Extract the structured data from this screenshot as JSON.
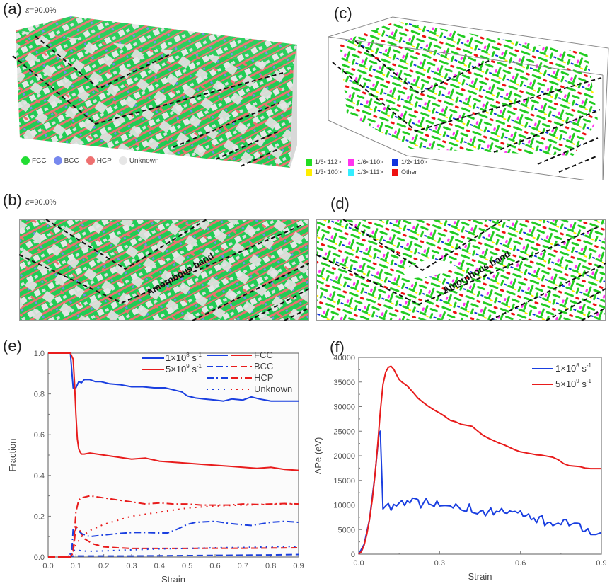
{
  "panels": {
    "a": {
      "label": "(a)",
      "strain_note": "=90.0%",
      "epsilon": "ε"
    },
    "b": {
      "label": "(b)",
      "strain_note": "=90.0%",
      "epsilon": "ε",
      "annotation": "Amorphous band"
    },
    "c": {
      "label": "(c)"
    },
    "d": {
      "label": "(d)",
      "annotation": "Amorphous band"
    },
    "e": {
      "label": "(e)"
    },
    "f": {
      "label": "(f)"
    }
  },
  "structure_legend": [
    {
      "label": "FCC",
      "color": "#22dd33"
    },
    {
      "label": "BCC",
      "color": "#7788ee"
    },
    {
      "label": "HCP",
      "color": "#ee7070"
    },
    {
      "label": "Unknown",
      "color": "#e6e6e6"
    }
  ],
  "dislocation_legend": [
    {
      "label": "1/6<112>",
      "color": "#22dd22"
    },
    {
      "label": "1/6<110>",
      "color": "#ff33ee"
    },
    {
      "label": "1/2<110>",
      "color": "#1133dd"
    },
    {
      "label": "1/3<100>",
      "color": "#ffee00"
    },
    {
      "label": "1/3<111>",
      "color": "#33eeff"
    },
    {
      "label": "Other",
      "color": "#ee1111"
    }
  ],
  "chart_data": [
    {
      "id": "e",
      "type": "line",
      "title": "",
      "xlabel": "Strain",
      "ylabel": "Fraction",
      "xlim": [
        0.0,
        0.9
      ],
      "ylim": [
        0.0,
        1.0
      ],
      "xticks": [
        "0.0",
        "0.1",
        "0.2",
        "0.3",
        "0.4",
        "0.5",
        "0.6",
        "0.7",
        "0.8",
        "0.9"
      ],
      "yticks": [
        "0.0",
        "0.2",
        "0.4",
        "0.6",
        "0.8",
        "1.0"
      ],
      "grid": false,
      "legend_position": "top-right",
      "legend_rates": [
        {
          "label": "1×10",
          "sup": "8",
          "unit": " s",
          "unitsup": "-1",
          "color": "#1a3fe0"
        },
        {
          "label": "5×10",
          "sup": "9",
          "unit": " s",
          "unitsup": "-1",
          "color": "#e81c1c"
        }
      ],
      "legend_styles": [
        {
          "label": "FCC",
          "style": "solid"
        },
        {
          "label": "BCC",
          "style": "dash"
        },
        {
          "label": "HCP",
          "style": "dashdot"
        },
        {
          "label": "Unknown",
          "style": "dot"
        }
      ],
      "series": [
        {
          "name": "1e8 FCC",
          "rate": "1×10^8 s^-1",
          "structure": "FCC",
          "color": "#1a3fe0",
          "style": "solid",
          "x": [
            0,
            0.07,
            0.08,
            0.09,
            0.1,
            0.11,
            0.12,
            0.13,
            0.15,
            0.17,
            0.19,
            0.22,
            0.26,
            0.3,
            0.34,
            0.38,
            0.42,
            0.45,
            0.48,
            0.5,
            0.53,
            0.56,
            0.6,
            0.63,
            0.66,
            0.7,
            0.73,
            0.76,
            0.8,
            0.84,
            0.87,
            0.9
          ],
          "y": [
            1,
            1,
            1,
            0.83,
            0.83,
            0.86,
            0.855,
            0.87,
            0.87,
            0.86,
            0.86,
            0.85,
            0.845,
            0.835,
            0.835,
            0.83,
            0.83,
            0.82,
            0.81,
            0.79,
            0.78,
            0.775,
            0.77,
            0.765,
            0.775,
            0.77,
            0.785,
            0.775,
            0.765,
            0.765,
            0.765,
            0.765
          ]
        },
        {
          "name": "5e9 FCC",
          "rate": "5×10^9 s^-1",
          "structure": "FCC",
          "color": "#e81c1c",
          "style": "solid",
          "x": [
            0,
            0.08,
            0.09,
            0.095,
            0.1,
            0.105,
            0.11,
            0.115,
            0.12,
            0.13,
            0.15,
            0.2,
            0.25,
            0.3,
            0.35,
            0.4,
            0.45,
            0.5,
            0.55,
            0.6,
            0.65,
            0.7,
            0.75,
            0.8,
            0.85,
            0.9
          ],
          "y": [
            1,
            1,
            0.97,
            0.85,
            0.7,
            0.58,
            0.53,
            0.515,
            0.505,
            0.505,
            0.51,
            0.5,
            0.49,
            0.48,
            0.485,
            0.47,
            0.465,
            0.46,
            0.455,
            0.45,
            0.445,
            0.44,
            0.435,
            0.44,
            0.43,
            0.425
          ]
        },
        {
          "name": "1e8 BCC",
          "rate": "1×10^8 s^-1",
          "structure": "BCC",
          "color": "#1a3fe0",
          "style": "dash",
          "x": [
            0,
            0.07,
            0.09,
            0.12,
            0.2,
            0.3,
            0.4,
            0.5,
            0.6,
            0.7,
            0.8,
            0.9
          ],
          "y": [
            0,
            0,
            0.005,
            0.005,
            0.005,
            0.005,
            0.006,
            0.007,
            0.008,
            0.009,
            0.01,
            0.012
          ]
        },
        {
          "name": "5e9 BCC",
          "rate": "5×10^9 s^-1",
          "structure": "BCC",
          "color": "#e81c1c",
          "style": "dash",
          "x": [
            0,
            0.08,
            0.09,
            0.1,
            0.11,
            0.13,
            0.16,
            0.2,
            0.25,
            0.3,
            0.4,
            0.5,
            0.6,
            0.7,
            0.8,
            0.9
          ],
          "y": [
            0,
            0,
            0.02,
            0.15,
            0.14,
            0.09,
            0.065,
            0.05,
            0.045,
            0.042,
            0.042,
            0.042,
            0.043,
            0.043,
            0.044,
            0.045
          ]
        },
        {
          "name": "1e8 HCP",
          "rate": "1×10^8 s^-1",
          "structure": "HCP",
          "color": "#1a3fe0",
          "style": "dashdot",
          "x": [
            0,
            0.07,
            0.085,
            0.09,
            0.1,
            0.12,
            0.15,
            0.2,
            0.25,
            0.3,
            0.35,
            0.4,
            0.43,
            0.47,
            0.5,
            0.53,
            0.6,
            0.65,
            0.7,
            0.73,
            0.8,
            0.85,
            0.9
          ],
          "y": [
            0,
            0,
            0.02,
            0.14,
            0.14,
            0.115,
            0.1,
            0.108,
            0.115,
            0.12,
            0.12,
            0.118,
            0.118,
            0.14,
            0.16,
            0.17,
            0.175,
            0.165,
            0.158,
            0.155,
            0.17,
            0.175,
            0.17
          ]
        },
        {
          "name": "5e9 HCP",
          "rate": "5×10^9 s^-1",
          "structure": "HCP",
          "color": "#e81c1c",
          "style": "dashdot",
          "x": [
            0,
            0.08,
            0.09,
            0.1,
            0.11,
            0.12,
            0.15,
            0.2,
            0.25,
            0.3,
            0.35,
            0.4,
            0.45,
            0.5,
            0.55,
            0.6,
            0.65,
            0.7,
            0.75,
            0.8,
            0.85,
            0.9
          ],
          "y": [
            0,
            0,
            0.03,
            0.22,
            0.28,
            0.29,
            0.3,
            0.29,
            0.28,
            0.27,
            0.26,
            0.265,
            0.26,
            0.26,
            0.255,
            0.255,
            0.255,
            0.26,
            0.258,
            0.26,
            0.262,
            0.26
          ]
        },
        {
          "name": "1e8 Unknown",
          "rate": "1×10^8 s^-1",
          "structure": "Unknown",
          "color": "#1a3fe0",
          "style": "dot",
          "x": [
            0,
            0.07,
            0.09,
            0.1,
            0.12,
            0.15,
            0.2,
            0.3,
            0.4,
            0.5,
            0.6,
            0.7,
            0.8,
            0.9
          ],
          "y": [
            0,
            0,
            0.03,
            0.035,
            0.03,
            0.028,
            0.03,
            0.035,
            0.04,
            0.042,
            0.045,
            0.047,
            0.05,
            0.052
          ]
        },
        {
          "name": "5e9 Unknown",
          "rate": "5×10^9 s^-1",
          "structure": "Unknown",
          "color": "#e81c1c",
          "style": "dot",
          "x": [
            0,
            0.08,
            0.1,
            0.12,
            0.15,
            0.2,
            0.25,
            0.3,
            0.35,
            0.4,
            0.45,
            0.5,
            0.55,
            0.6,
            0.7,
            0.8,
            0.9
          ],
          "y": [
            0,
            0,
            0.06,
            0.1,
            0.13,
            0.16,
            0.18,
            0.2,
            0.21,
            0.22,
            0.23,
            0.24,
            0.245,
            0.25,
            0.255,
            0.258,
            0.26
          ]
        }
      ]
    },
    {
      "id": "f",
      "type": "line",
      "title": "",
      "xlabel": "Strain",
      "ylabel": "ΔPe (eV)",
      "xlim": [
        0.0,
        0.9
      ],
      "ylim": [
        0,
        40000
      ],
      "xticks": [
        "0.0",
        "0.3",
        "0.6",
        "0.9"
      ],
      "yticks": [
        "0",
        "5000",
        "10000",
        "15000",
        "20000",
        "25000",
        "30000",
        "35000",
        "40000"
      ],
      "grid": false,
      "legend_position": "top-right",
      "legend": [
        {
          "label": "1×10",
          "sup": "8",
          "unit": " s",
          "unitsup": "-1",
          "color": "#1a3fe0"
        },
        {
          "label": "5×10",
          "sup": "9",
          "unit": " s",
          "unitsup": "-1",
          "color": "#e81c1c"
        }
      ],
      "series": [
        {
          "name": "1×10^8 s^-1",
          "color": "#1a3fe0",
          "x": [
            0,
            0.02,
            0.04,
            0.06,
            0.075,
            0.08,
            0.09,
            0.1,
            0.11,
            0.12,
            0.13,
            0.14,
            0.15,
            0.16,
            0.17,
            0.18,
            0.19,
            0.2,
            0.21,
            0.22,
            0.23,
            0.24,
            0.25,
            0.26,
            0.27,
            0.28,
            0.29,
            0.3,
            0.32,
            0.34,
            0.35,
            0.36,
            0.38,
            0.39,
            0.4,
            0.41,
            0.42,
            0.44,
            0.45,
            0.46,
            0.47,
            0.49,
            0.5,
            0.51,
            0.52,
            0.53,
            0.54,
            0.55,
            0.56,
            0.57,
            0.58,
            0.59,
            0.6,
            0.61,
            0.62,
            0.63,
            0.64,
            0.65,
            0.66,
            0.67,
            0.68,
            0.69,
            0.7,
            0.71,
            0.72,
            0.73,
            0.74,
            0.75,
            0.76,
            0.77,
            0.78,
            0.79,
            0.8,
            0.81,
            0.82,
            0.83,
            0.84,
            0.85,
            0.86,
            0.88,
            0.9
          ],
          "y": [
            0,
            2000,
            7000,
            16000,
            24500,
            25000,
            9200,
            9800,
            10300,
            8900,
            10100,
            9800,
            10400,
            10900,
            9900,
            10900,
            10400,
            11400,
            11300,
            11100,
            9400,
            10400,
            11300,
            10200,
            10000,
            9700,
            10800,
            9800,
            9900,
            9800,
            9400,
            10200,
            9000,
            8800,
            8700,
            10200,
            8500,
            8200,
            8700,
            8900,
            7800,
            9400,
            8000,
            8700,
            8600,
            9300,
            8400,
            8300,
            8800,
            8600,
            8700,
            8400,
            8800,
            7700,
            7800,
            8200,
            7000,
            7300,
            6400,
            7600,
            7800,
            5800,
            6400,
            6500,
            5800,
            6100,
            6300,
            6000,
            7000,
            7000,
            5800,
            6100,
            6300,
            6300,
            6200,
            4600,
            4700,
            5200,
            4000,
            4000,
            4400
          ]
        },
        {
          "name": "5×10^9 s^-1",
          "color": "#e81c1c",
          "x": [
            0,
            0.01,
            0.02,
            0.03,
            0.04,
            0.05,
            0.06,
            0.07,
            0.08,
            0.09,
            0.1,
            0.11,
            0.12,
            0.13,
            0.14,
            0.15,
            0.16,
            0.18,
            0.2,
            0.22,
            0.24,
            0.26,
            0.28,
            0.3,
            0.32,
            0.34,
            0.36,
            0.38,
            0.4,
            0.42,
            0.44,
            0.46,
            0.48,
            0.5,
            0.52,
            0.54,
            0.56,
            0.58,
            0.6,
            0.62,
            0.64,
            0.66,
            0.68,
            0.7,
            0.72,
            0.74,
            0.76,
            0.78,
            0.8,
            0.82,
            0.84,
            0.86,
            0.88,
            0.9
          ],
          "y": [
            0,
            500,
            1800,
            4000,
            7000,
            11000,
            16000,
            22000,
            29000,
            34500,
            37000,
            38000,
            38200,
            37600,
            36500,
            35500,
            35000,
            34200,
            33000,
            31700,
            30800,
            30000,
            29300,
            28700,
            28000,
            27200,
            26900,
            26400,
            26200,
            26000,
            25100,
            24200,
            23600,
            23100,
            22600,
            22200,
            21700,
            21200,
            20800,
            20600,
            20400,
            20200,
            20100,
            19900,
            19700,
            19200,
            18400,
            18000,
            17900,
            17800,
            17500,
            17400,
            17400,
            17400
          ]
        }
      ]
    }
  ]
}
